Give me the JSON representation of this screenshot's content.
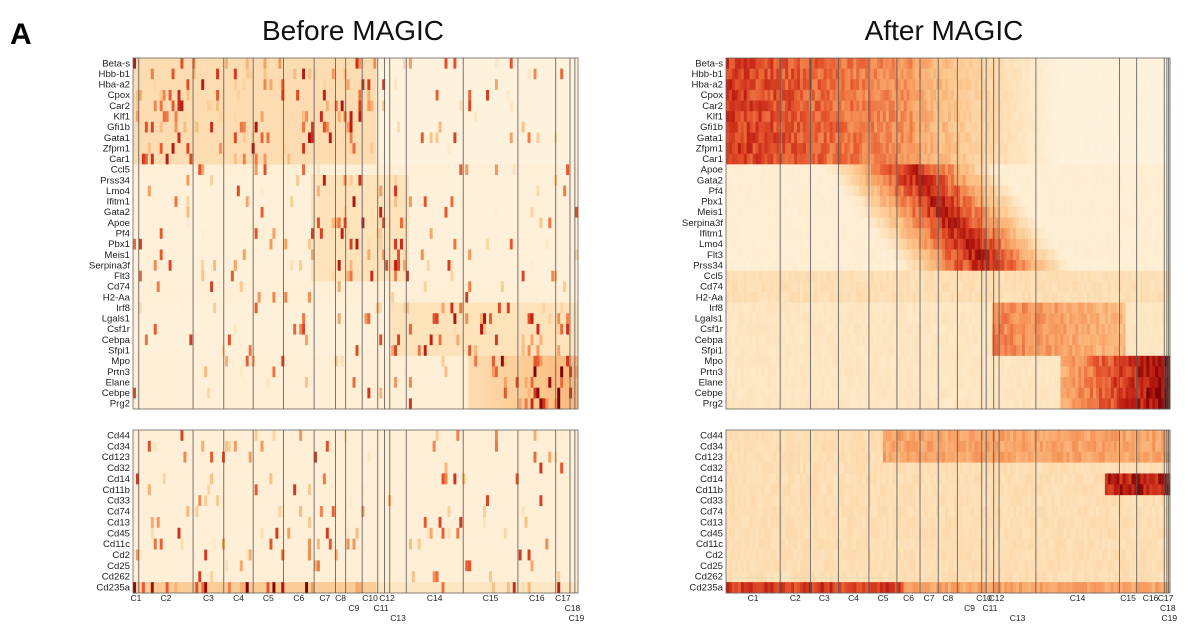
{
  "figure": {
    "panel_letter": "A"
  },
  "chart_data": [
    {
      "type": "heatmap",
      "title": "Before MAGIC",
      "smoothed": false,
      "clusters": [
        "C1",
        "C2",
        "C3",
        "C4",
        "C5",
        "C6",
        "C7",
        "C8",
        "C9",
        "C10",
        "C11",
        "C12",
        "C13",
        "C14",
        "C15",
        "C16",
        "C17",
        "C18",
        "C19"
      ],
      "cluster_boundaries": [
        0.0,
        0.013,
        0.135,
        0.204,
        0.27,
        0.338,
        0.407,
        0.455,
        0.478,
        0.515,
        0.55,
        0.565,
        0.577,
        0.614,
        0.742,
        0.865,
        0.95,
        0.982,
        0.993,
        1.0
      ],
      "gene_rows": [
        "Beta-s",
        "Hbb-b1",
        "Hba-a2",
        "Cpox",
        "Car2",
        "Klf1",
        "Gfi1b",
        "Gata1",
        "Zfpm1",
        "Car1",
        "Ccl5",
        "Prss34",
        "Lmo4",
        "Ifitm1",
        "Gata2",
        "Apoe",
        "Pf4",
        "Pbx1",
        "Meis1",
        "Serpina3f",
        "Flt3",
        "Cd74",
        "H2-Aa",
        "Irf8",
        "Lgals1",
        "Csf1r",
        "Cebpa",
        "Sfpi1",
        "Mpo",
        "Prtn3",
        "Elane",
        "Cebpe",
        "Prg2"
      ],
      "protein_rows": [
        "Cd44",
        "Cd34",
        "Cd123",
        "Cd32",
        "Cd14",
        "Cd11b",
        "Cd33",
        "Cd74",
        "Cd13",
        "Cd45",
        "Cd11c",
        "Cd2",
        "Cd25",
        "Cd262",
        "Cd235a"
      ]
    },
    {
      "type": "heatmap",
      "title": "After MAGIC",
      "smoothed": true,
      "clusters": [
        "C1",
        "C2",
        "C3",
        "C4",
        "C5",
        "C6",
        "C7",
        "C8",
        "C9",
        "C10",
        "C11",
        "C12",
        "C13",
        "C14",
        "C15",
        "C16",
        "C17",
        "C18",
        "C19"
      ],
      "cluster_boundaries": [
        0.0,
        0.122,
        0.19,
        0.253,
        0.322,
        0.385,
        0.437,
        0.478,
        0.521,
        0.576,
        0.586,
        0.603,
        0.615,
        0.698,
        0.886,
        0.925,
        0.987,
        0.993,
        0.997,
        1.0
      ],
      "gene_rows": [
        "Beta-s",
        "Hbb-b1",
        "Hba-a2",
        "Cpox",
        "Car2",
        "Klf1",
        "Gfi1b",
        "Gata1",
        "Zfpm1",
        "Car1",
        "Apoe",
        "Gata2",
        "Pf4",
        "Pbx1",
        "Meis1",
        "Serpina3f",
        "Ifitm1",
        "Lmo4",
        "Flt3",
        "Prss34",
        "Ccl5",
        "Cd74",
        "H2-Aa",
        "Irf8",
        "Lgals1",
        "Csf1r",
        "Cebpa",
        "Sfpi1",
        "Mpo",
        "Prtn3",
        "Elane",
        "Cebpe",
        "Prg2"
      ],
      "protein_rows": [
        "Cd44",
        "Cd34",
        "Cd123",
        "Cd32",
        "Cd14",
        "Cd11b",
        "Cd33",
        "Cd74",
        "Cd13",
        "Cd45",
        "Cd11c",
        "Cd2",
        "Cd25",
        "Cd262",
        "Cd235a"
      ]
    }
  ]
}
